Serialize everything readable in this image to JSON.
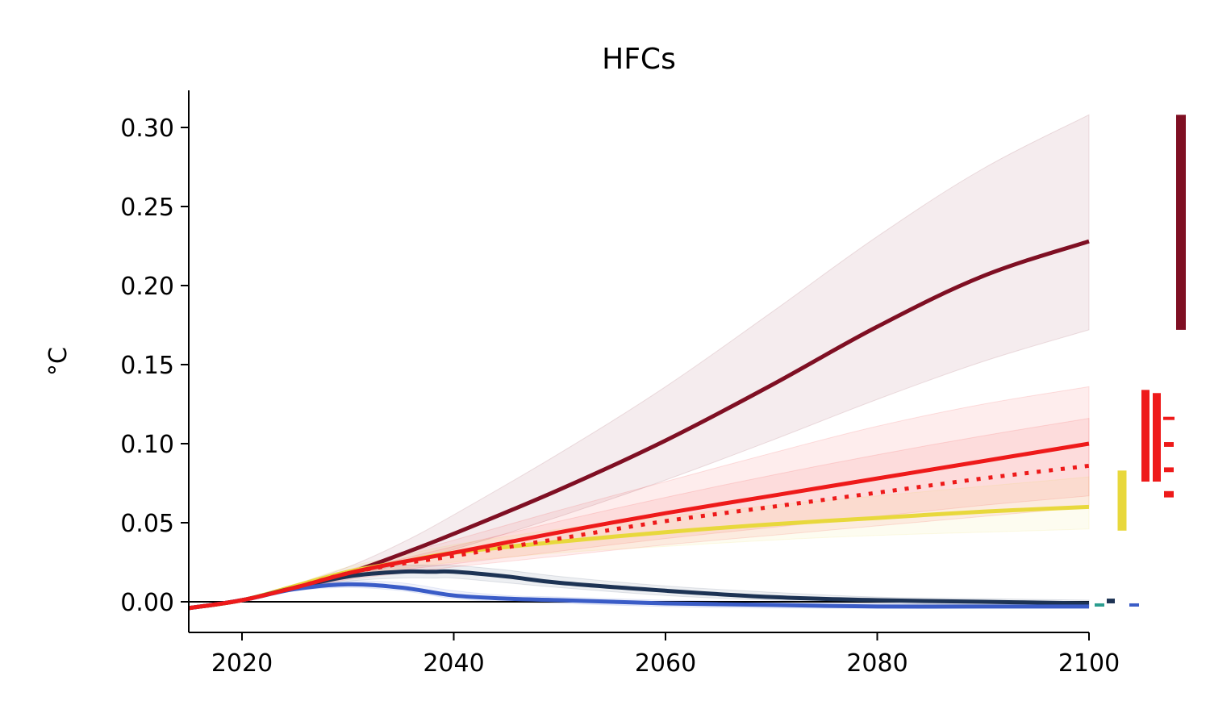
{
  "chart_data": {
    "type": "line",
    "title": "HFCs",
    "xlabel": "",
    "ylabel": "°C",
    "xlim": [
      2015,
      2100
    ],
    "ylim": [
      -0.02,
      0.32
    ],
    "x_ticks": [
      2020,
      2040,
      2060,
      2080,
      2100
    ],
    "y_ticks": [
      0.0,
      0.05,
      0.1,
      0.15,
      0.2,
      0.25,
      0.3
    ],
    "y_tick_labels": [
      "0.00",
      "0.05",
      "0.10",
      "0.15",
      "0.20",
      "0.25",
      "0.30"
    ],
    "zero_line": true,
    "grid": false,
    "series": [
      {
        "color": "#7f0f23",
        "style": "solid",
        "x": [
          2015,
          2020,
          2025,
          2030,
          2035,
          2040,
          2050,
          2060,
          2070,
          2080,
          2090,
          2100
        ],
        "values": [
          -0.004,
          0.001,
          0.009,
          0.018,
          0.03,
          0.043,
          0.071,
          0.102,
          0.137,
          0.174,
          0.206,
          0.228
        ],
        "band_low": [
          -0.004,
          0.001,
          0.008,
          0.015,
          0.024,
          0.033,
          0.054,
          0.077,
          0.102,
          0.128,
          0.152,
          0.172
        ],
        "band_high": [
          -0.004,
          0.001,
          0.011,
          0.022,
          0.037,
          0.055,
          0.094,
          0.136,
          0.183,
          0.231,
          0.274,
          0.308
        ]
      },
      {
        "color": "#ee1a1a",
        "style": "solid",
        "x": [
          2015,
          2020,
          2025,
          2030,
          2035,
          2040,
          2050,
          2060,
          2070,
          2080,
          2090,
          2100
        ],
        "values": [
          -0.004,
          0.001,
          0.009,
          0.018,
          0.025,
          0.031,
          0.044,
          0.056,
          0.067,
          0.078,
          0.089,
          0.1
        ],
        "band_low": [
          -0.004,
          0.001,
          0.008,
          0.015,
          0.02,
          0.024,
          0.032,
          0.04,
          0.047,
          0.054,
          0.061,
          0.067
        ],
        "band_high": [
          -0.004,
          0.001,
          0.01,
          0.02,
          0.03,
          0.039,
          0.058,
          0.076,
          0.094,
          0.111,
          0.125,
          0.136
        ]
      },
      {
        "color": "#ee1a1a",
        "style": "dotted",
        "x": [
          2015,
          2020,
          2025,
          2030,
          2035,
          2040,
          2050,
          2060,
          2070,
          2080,
          2090,
          2100
        ],
        "values": [
          -0.004,
          0.001,
          0.009,
          0.018,
          0.024,
          0.029,
          0.04,
          0.051,
          0.06,
          0.069,
          0.078,
          0.086
        ],
        "band_low": [
          -0.004,
          0.001,
          0.008,
          0.014,
          0.018,
          0.022,
          0.029,
          0.036,
          0.042,
          0.048,
          0.054,
          0.06
        ],
        "band_high": [
          -0.004,
          0.001,
          0.01,
          0.019,
          0.027,
          0.035,
          0.051,
          0.066,
          0.08,
          0.093,
          0.105,
          0.116
        ]
      },
      {
        "color": "#e8d83c",
        "style": "solid",
        "x": [
          2015,
          2020,
          2025,
          2030,
          2035,
          2040,
          2050,
          2060,
          2070,
          2080,
          2090,
          2100
        ],
        "values": [
          -0.004,
          0.001,
          0.01,
          0.019,
          0.025,
          0.031,
          0.038,
          0.044,
          0.049,
          0.053,
          0.057,
          0.06
        ],
        "band_low": [
          -0.004,
          0.001,
          0.009,
          0.016,
          0.021,
          0.025,
          0.031,
          0.035,
          0.039,
          0.042,
          0.044,
          0.046
        ],
        "band_high": [
          -0.004,
          0.001,
          0.011,
          0.022,
          0.029,
          0.036,
          0.046,
          0.054,
          0.061,
          0.067,
          0.073,
          0.079
        ]
      },
      {
        "color": "#1d3354",
        "style": "solid",
        "x": [
          2015,
          2020,
          2025,
          2030,
          2035,
          2038,
          2040,
          2045,
          2050,
          2060,
          2070,
          2080,
          2090,
          2100
        ],
        "values": [
          -0.004,
          0.001,
          0.009,
          0.016,
          0.019,
          0.019,
          0.019,
          0.016,
          0.012,
          0.007,
          0.003,
          0.001,
          0.0,
          -0.001
        ],
        "band_low": [
          -0.004,
          0.001,
          0.008,
          0.013,
          0.015,
          0.015,
          0.015,
          0.012,
          0.009,
          0.004,
          0.001,
          -0.001,
          -0.002,
          -0.003
        ],
        "band_high": [
          -0.004,
          0.001,
          0.01,
          0.019,
          0.023,
          0.023,
          0.023,
          0.02,
          0.016,
          0.01,
          0.006,
          0.003,
          0.002,
          0.001
        ]
      },
      {
        "color": "#3a5cc7",
        "style": "solid",
        "x": [
          2015,
          2020,
          2025,
          2030,
          2035,
          2040,
          2045,
          2050,
          2060,
          2070,
          2080,
          2090,
          2100
        ],
        "values": [
          -0.004,
          0.001,
          0.008,
          0.011,
          0.009,
          0.004,
          0.002,
          0.001,
          -0.001,
          -0.002,
          -0.003,
          -0.003,
          -0.003
        ],
        "band_low": [
          -0.004,
          0.001,
          0.007,
          0.009,
          0.007,
          0.002,
          0.0,
          -0.001,
          -0.003,
          -0.004,
          -0.004,
          -0.004,
          -0.004
        ],
        "band_high": [
          -0.004,
          0.001,
          0.009,
          0.013,
          0.012,
          0.007,
          0.004,
          0.003,
          0.001,
          0.0,
          -0.001,
          -0.001,
          -0.001
        ]
      }
    ],
    "range_bars_2100": [
      {
        "color": "#7f0f23",
        "low": 0.172,
        "high": 0.308
      },
      {
        "color": "#ee1a1a",
        "low": 0.076,
        "high": 0.134
      },
      {
        "color": "#ee1a1a",
        "low": 0.076,
        "high": 0.132
      },
      {
        "color": "#ee1a1a",
        "low": 0.115,
        "high": 0.117
      },
      {
        "color": "#ee1a1a",
        "low": 0.098,
        "high": 0.101
      },
      {
        "color": "#ee1a1a",
        "low": 0.082,
        "high": 0.085
      },
      {
        "color": "#ee1a1a",
        "low": 0.066,
        "high": 0.07
      },
      {
        "color": "#e8d83c",
        "low": 0.045,
        "high": 0.083
      },
      {
        "color": "#2a9d8f",
        "low": -0.003,
        "high": -0.001
      },
      {
        "color": "#1d3354",
        "low": -0.001,
        "high": 0.002
      },
      {
        "color": "#3a5cc7",
        "low": -0.003,
        "high": -0.001
      }
    ]
  }
}
